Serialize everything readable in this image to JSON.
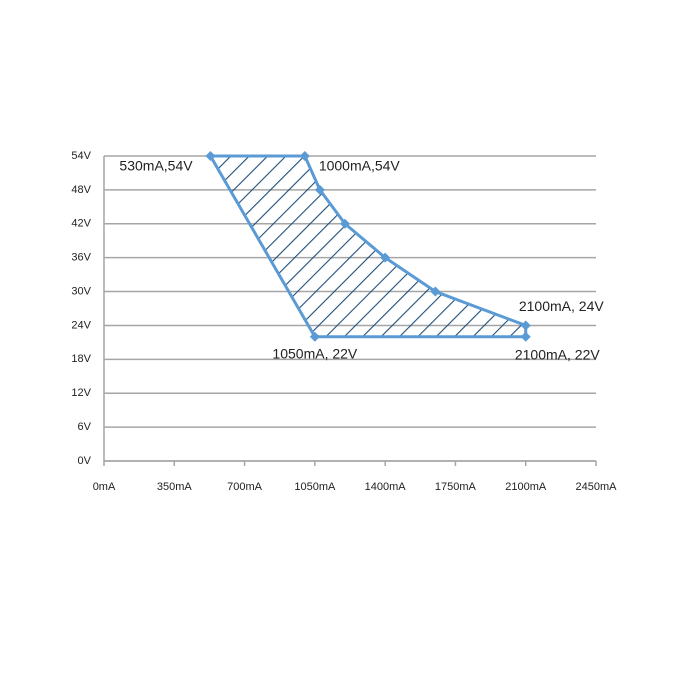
{
  "chart_data": {
    "type": "area",
    "series": [
      {
        "color": "#5b9bd5",
        "hatch": "#1f4e79",
        "x": [
          530,
          1000,
          1075,
          1200,
          1400,
          1650,
          2100,
          2100,
          1050
        ],
        "values": [
          54,
          54,
          48,
          42,
          36,
          30,
          24,
          22,
          22
        ],
        "value_labels": [
          "530mA,54V",
          "1000mA,54V",
          null,
          null,
          null,
          null,
          "2100mA, 24V",
          "2100mA, 22V",
          "1050mA, 22V"
        ]
      }
    ],
    "xlim": [
      0,
      2450
    ],
    "xticks": [
      {
        "value": 0,
        "label": "0mA"
      },
      {
        "value": 350,
        "label": "350mA"
      },
      {
        "value": 700,
        "label": "700mA"
      },
      {
        "value": 1050,
        "label": "1050mA"
      },
      {
        "value": 1400,
        "label": "1400mA"
      },
      {
        "value": 1750,
        "label": "1750mA"
      },
      {
        "value": 2100,
        "label": "2100mA"
      },
      {
        "value": 2450,
        "label": "2450mA"
      }
    ],
    "ylim": [
      0,
      54
    ],
    "yticks": [
      {
        "value": 0,
        "label": "0V"
      },
      {
        "value": 6,
        "label": "6V"
      },
      {
        "value": 12,
        "label": "12V"
      },
      {
        "value": 18,
        "label": "18V"
      },
      {
        "value": 24,
        "label": "24V"
      },
      {
        "value": 30,
        "label": "30V"
      },
      {
        "value": 36,
        "label": "36V"
      },
      {
        "value": 42,
        "label": "42V"
      },
      {
        "value": 48,
        "label": "48V"
      },
      {
        "value": 54,
        "label": "54V"
      }
    ],
    "grid": true
  }
}
